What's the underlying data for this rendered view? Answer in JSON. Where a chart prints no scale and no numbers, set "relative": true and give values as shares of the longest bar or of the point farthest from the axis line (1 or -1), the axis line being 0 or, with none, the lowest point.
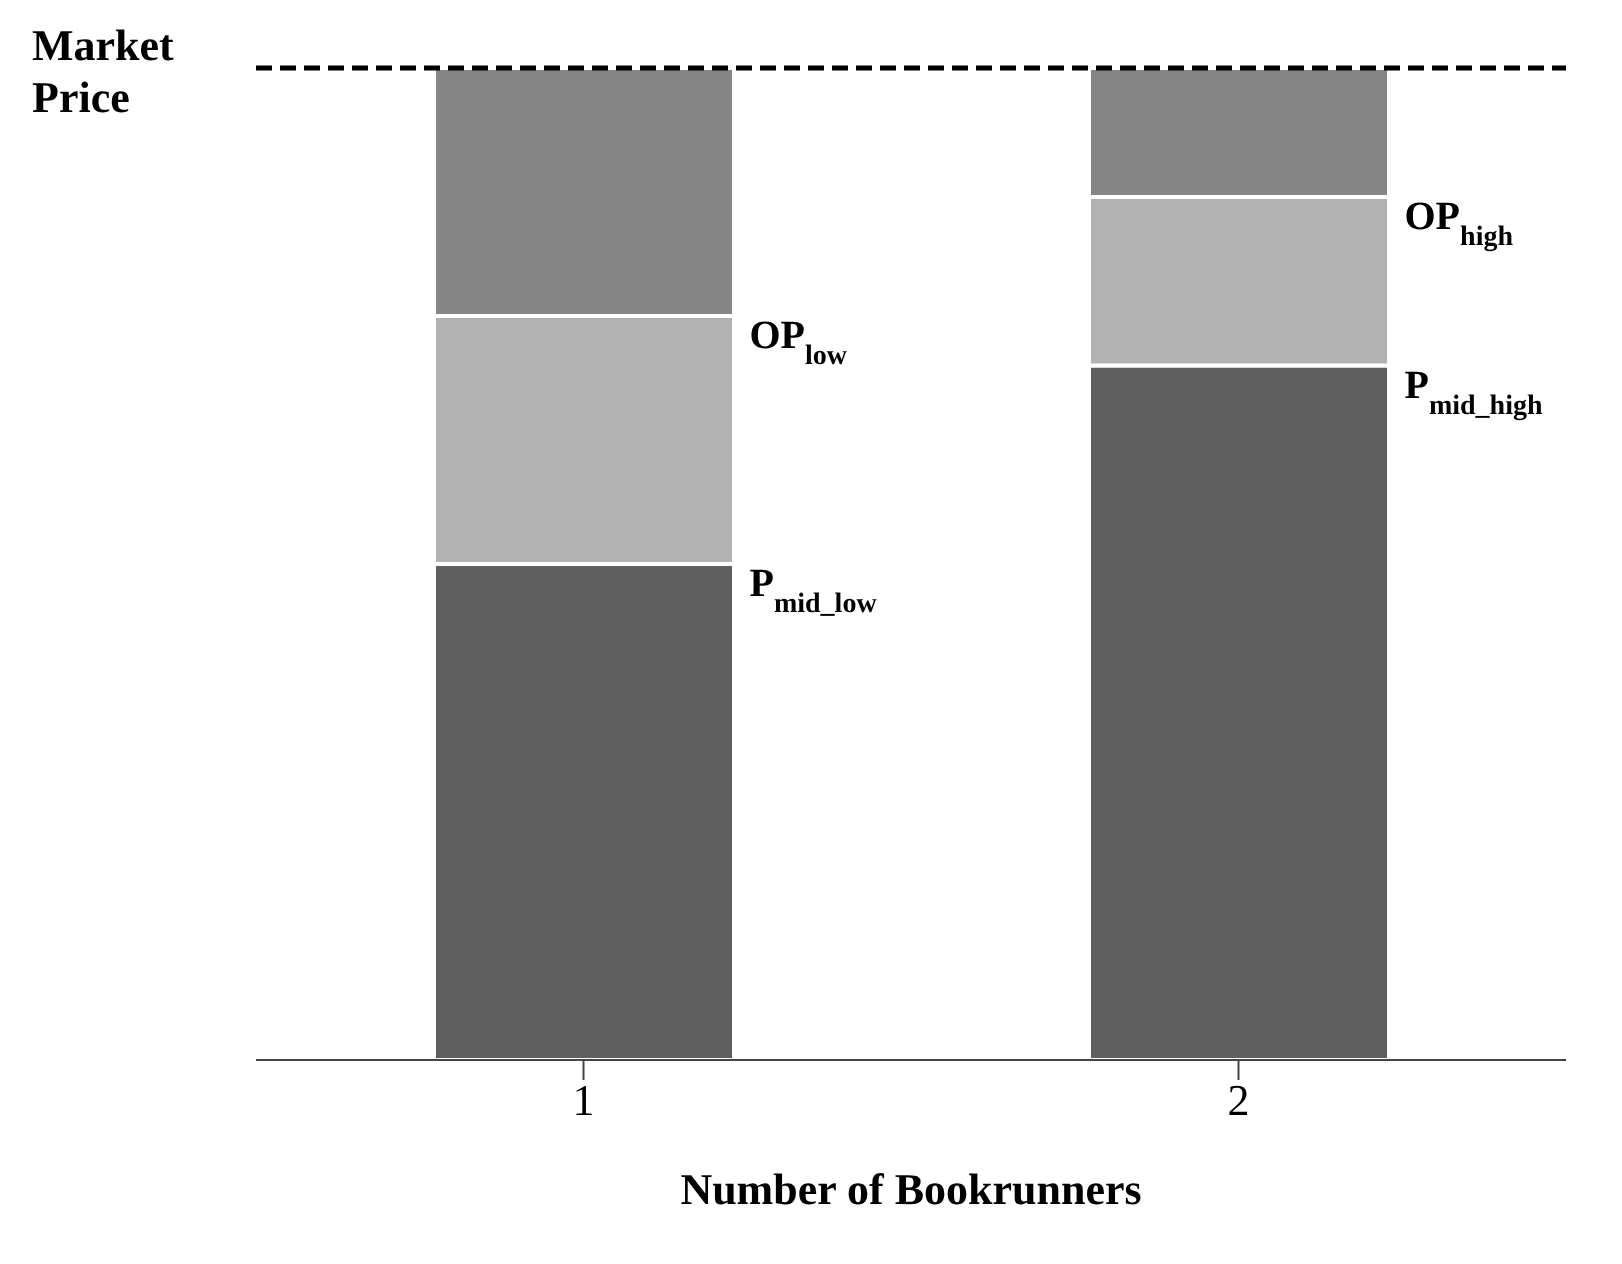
{
  "chart_data": {
    "type": "bar",
    "relative": true,
    "stacked": true,
    "xlabel": "Number of Bookrunners",
    "categories": [
      "1",
      "2"
    ],
    "series": [
      {
        "color": "#5f5f5f",
        "values": [
          0.5,
          0.7
        ]
      },
      {
        "color": "#b2b2b2",
        "values": [
          0.25,
          0.17
        ]
      },
      {
        "color": "#858585",
        "values": [
          0.25,
          0.13
        ]
      }
    ],
    "ref_lines": [
      {
        "axis": "y",
        "value": 1,
        "label": "Market Price",
        "line_style": "dashed",
        "color": "#000000"
      }
    ],
    "annotations": [
      "OP$_{low}$",
      "P$_{mid_low}$",
      "OP$_{high}$",
      "P$_{mid_high}$"
    ]
  }
}
